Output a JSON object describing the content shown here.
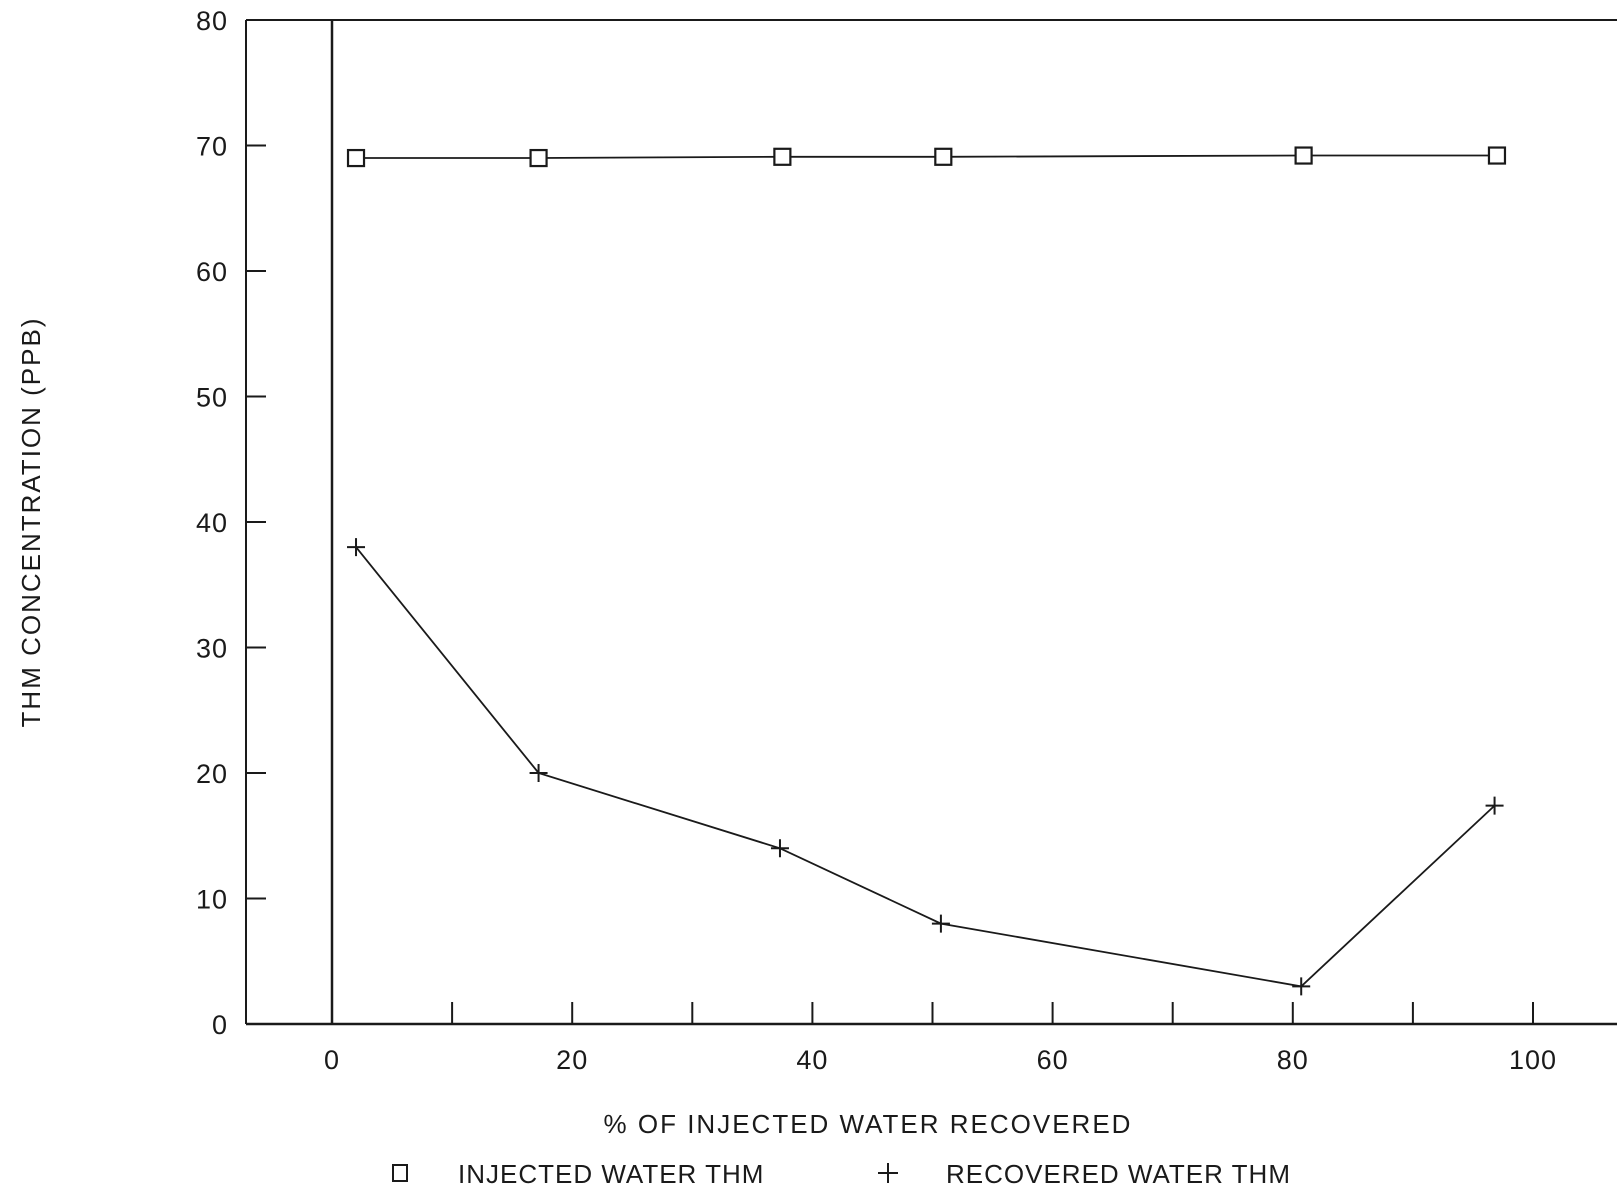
{
  "chart_data": {
    "type": "line",
    "title": "",
    "xlabel": "% OF INJECTED WATER RECOVERED",
    "ylabel": "THM CONCENTRATION (PPB)",
    "xlim": [
      -7,
      107
    ],
    "ylim": [
      0,
      80
    ],
    "x_ticks": [
      0,
      20,
      40,
      60,
      80,
      100
    ],
    "x_minor_ticks": [
      10,
      30,
      50,
      70,
      90
    ],
    "y_ticks": [
      0,
      10,
      20,
      30,
      40,
      50,
      60,
      70,
      80
    ],
    "grid": false,
    "legend_position": "bottom",
    "series": [
      {
        "name": "INJECTED WATER THM",
        "marker": "square",
        "color": "#1a1a1a",
        "points": [
          {
            "x": 2,
            "y": 69
          },
          {
            "x": 17.2,
            "y": 69
          },
          {
            "x": 37.5,
            "y": 69.1
          },
          {
            "x": 50.9,
            "y": 69.1
          },
          {
            "x": 80.9,
            "y": 69.2
          },
          {
            "x": 97,
            "y": 69.2
          }
        ]
      },
      {
        "name": "RECOVERED WATER THM",
        "marker": "plus",
        "color": "#1a1a1a",
        "points": [
          {
            "x": 2,
            "y": 38
          },
          {
            "x": 17.2,
            "y": 20
          },
          {
            "x": 37.3,
            "y": 14
          },
          {
            "x": 50.7,
            "y": 8
          },
          {
            "x": 80.7,
            "y": 3
          },
          {
            "x": 96.8,
            "y": 17.4
          }
        ]
      }
    ]
  }
}
